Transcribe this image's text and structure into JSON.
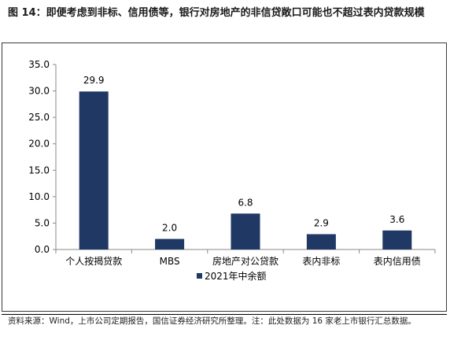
{
  "figure": {
    "title": "图 14：即便考虑到非标、信用债等，银行对房地产的非信贷敞口可能也不超过表内贷款规模",
    "source": "资料来源：Wind，上市公司定期报告，国信证券经济研究所整理。注：此处数据为 16 家老上市银行汇总数据。"
  },
  "chart_data": {
    "type": "bar",
    "title": "",
    "xlabel": "",
    "ylabel": "",
    "categories": [
      "个人按揭贷款",
      "MBS",
      "房地产对公贷款",
      "表内非标",
      "表内信用债"
    ],
    "series": [
      {
        "name": "2021年中余额",
        "values": [
          29.9,
          2.0,
          6.8,
          2.9,
          3.6
        ],
        "color": "#1f3864"
      }
    ],
    "ylim": [
      0,
      35
    ],
    "yticks": [
      "0.0",
      "5.0",
      "10.0",
      "15.0",
      "20.0",
      "25.0",
      "30.0",
      "35.0"
    ],
    "data_labels": [
      "29.9",
      "2.0",
      "6.8",
      "2.9",
      "3.6"
    ],
    "grid": false,
    "legend": "bottom-center"
  }
}
